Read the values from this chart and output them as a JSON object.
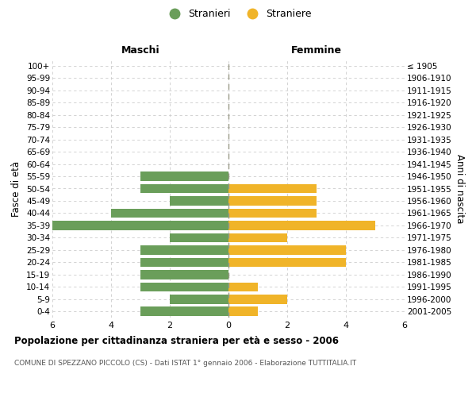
{
  "age_groups": [
    "0-4",
    "5-9",
    "10-14",
    "15-19",
    "20-24",
    "25-29",
    "30-34",
    "35-39",
    "40-44",
    "45-49",
    "50-54",
    "55-59",
    "60-64",
    "65-69",
    "70-74",
    "75-79",
    "80-84",
    "85-89",
    "90-94",
    "95-99",
    "100+"
  ],
  "birth_years": [
    "2001-2005",
    "1996-2000",
    "1991-1995",
    "1986-1990",
    "1981-1985",
    "1976-1980",
    "1971-1975",
    "1966-1970",
    "1961-1965",
    "1956-1960",
    "1951-1955",
    "1946-1950",
    "1941-1945",
    "1936-1940",
    "1931-1935",
    "1926-1930",
    "1921-1925",
    "1916-1920",
    "1911-1915",
    "1906-1910",
    "≤ 1905"
  ],
  "maschi": [
    3,
    2,
    3,
    3,
    3,
    3,
    2,
    6,
    4,
    2,
    3,
    3,
    0,
    0,
    0,
    0,
    0,
    0,
    0,
    0,
    0
  ],
  "femmine": [
    1,
    2,
    1,
    0,
    4,
    4,
    2,
    5,
    3,
    3,
    3,
    0,
    0,
    0,
    0,
    0,
    0,
    0,
    0,
    0,
    0
  ],
  "color_maschi": "#6a9e5a",
  "color_femmine": "#f0b429",
  "title": "Popolazione per cittadinanza straniera per età e sesso - 2006",
  "subtitle": "COMUNE DI SPEZZANO PICCOLO (CS) - Dati ISTAT 1° gennaio 2006 - Elaborazione TUTTITALIA.IT",
  "xlabel_left": "Maschi",
  "xlabel_right": "Femmine",
  "ylabel_left": "Fasce di età",
  "ylabel_right": "Anni di nascita",
  "legend_maschi": "Stranieri",
  "legend_femmine": "Straniere",
  "xlim": 6,
  "background_color": "#ffffff",
  "grid_color": "#cccccc",
  "bar_height": 0.75
}
